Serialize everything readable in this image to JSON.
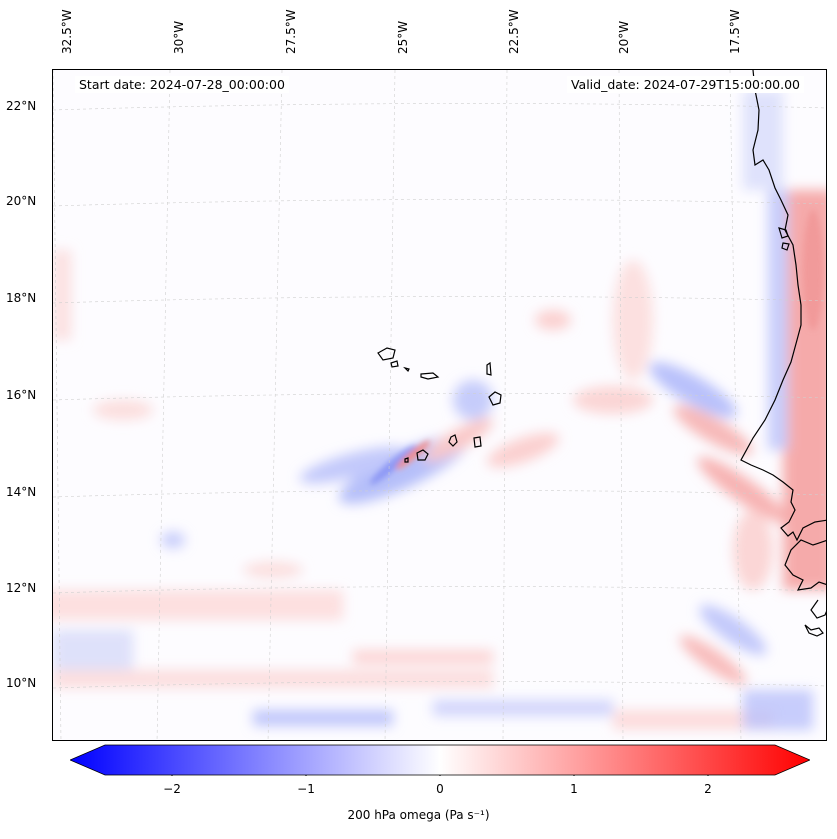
{
  "map": {
    "title_left": "Start date: 2024-07-28_00:00:00",
    "title_right": "Valid_date: 2024-07-29T15:00:00.00",
    "lon_labels": [
      "32.5°W",
      "30°W",
      "27.5°W",
      "25°W",
      "22.5°W",
      "20°W",
      "17.5°W"
    ],
    "lat_labels": [
      "22°N",
      "20°N",
      "18°N",
      "16°N",
      "14°N",
      "12°N",
      "10°N"
    ],
    "field": "200 hPa omega",
    "region": "Cabo Verde islands and West African coast (Senegal / Guinea-Bissau)"
  },
  "colorbar": {
    "label": "200 hPa omega (Pa s⁻¹)",
    "ticks": [
      "−2",
      "−1",
      "0",
      "1",
      "2"
    ],
    "min": -2.6,
    "max": 2.6,
    "low_color": "#0000ff",
    "mid_color": "#ffffff",
    "high_color": "#ff0000"
  }
}
